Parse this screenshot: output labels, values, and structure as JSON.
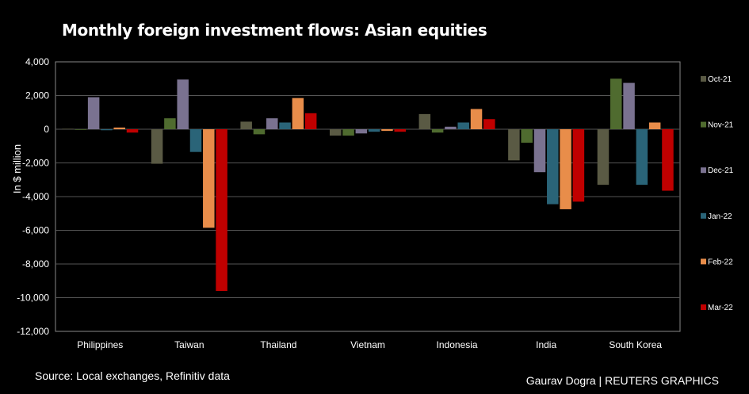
{
  "header": {
    "title": "Monthly foreign investment flows: Asian equities"
  },
  "footer": {
    "source": "Source: Local exchanges, Refinitiv data",
    "credit": "Gaurav Dogra | REUTERS GRAPHICS"
  },
  "chart_data": {
    "type": "bar",
    "title": "Monthly foreign investment flows: Asian equities",
    "xlabel": "",
    "ylabel": "In $ million",
    "ylim": [
      -12000,
      4000
    ],
    "yticks": [
      4000,
      2000,
      0,
      -2000,
      -4000,
      -6000,
      -8000,
      -10000,
      -12000
    ],
    "ytick_labels": [
      "4,000",
      "2,000",
      "0",
      "-2,000",
      "-4,000",
      "-6,000",
      "-8,000",
      "-10,000",
      "-12,000"
    ],
    "grid": true,
    "legend_position": "right",
    "categories": [
      "Philippines",
      "Taiwan",
      "Thailand",
      "Vietnam",
      "Indonesia",
      "India",
      "South Korea"
    ],
    "series": [
      {
        "name": "Oct-21",
        "color": "#5a5a44",
        "values": [
          30,
          -2050,
          450,
          -380,
          900,
          -1850,
          -3300
        ]
      },
      {
        "name": "Nov-21",
        "color": "#4f6b2f",
        "values": [
          -20,
          650,
          -300,
          -380,
          -200,
          -800,
          3000
        ]
      },
      {
        "name": "Dec-21",
        "color": "#7a7290",
        "values": [
          1900,
          2950,
          650,
          -250,
          150,
          -2550,
          2750
        ]
      },
      {
        "name": "Jan-22",
        "color": "#2a6478",
        "values": [
          -60,
          -1350,
          400,
          -150,
          400,
          -4450,
          -3300
        ]
      },
      {
        "name": "Feb-22",
        "color": "#e88d4a",
        "values": [
          100,
          -5850,
          1850,
          -100,
          1200,
          -4750,
          400
        ]
      },
      {
        "name": "Mar-22",
        "color": "#c00000",
        "values": [
          -200,
          -9600,
          950,
          -150,
          600,
          -4300,
          -3650
        ]
      }
    ]
  }
}
